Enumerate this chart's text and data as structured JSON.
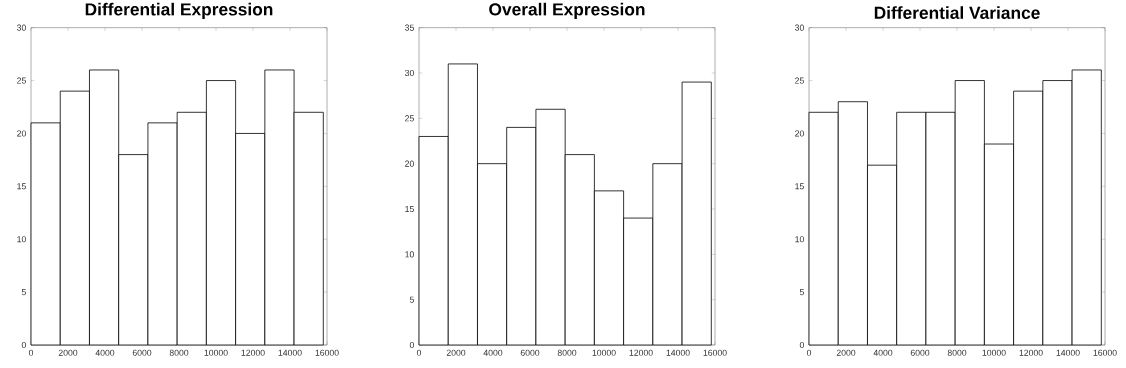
{
  "chart_data": [
    {
      "type": "histogram",
      "title": "Differential Expression",
      "bins": [
        0,
        1580,
        3160,
        4740,
        6320,
        7900,
        9480,
        11060,
        12640,
        14220,
        15800
      ],
      "values": [
        21,
        24,
        26,
        18,
        21,
        22,
        25,
        20,
        26,
        22
      ],
      "color": "#ffffff",
      "xlim": [
        0,
        16000
      ],
      "ylim": [
        0,
        30
      ],
      "xticks": [
        0,
        2000,
        4000,
        6000,
        8000,
        10000,
        12000,
        14000,
        16000
      ],
      "yticks": [
        0,
        5,
        10,
        15,
        20,
        25,
        30
      ]
    },
    {
      "type": "histogram",
      "title": "Overall Expression",
      "bins": [
        0,
        1580,
        3160,
        4740,
        6320,
        7900,
        9480,
        11060,
        12640,
        14220,
        15800
      ],
      "values": [
        23,
        31,
        20,
        24,
        26,
        21,
        17,
        14,
        20,
        29
      ],
      "color": "#ffffff",
      "xlim": [
        0,
        16000
      ],
      "ylim": [
        0,
        35
      ],
      "xticks": [
        0,
        2000,
        4000,
        6000,
        8000,
        10000,
        12000,
        14000,
        16000
      ],
      "yticks": [
        0,
        5,
        10,
        15,
        20,
        25,
        30,
        35
      ]
    },
    {
      "type": "histogram",
      "title": "Differential Variance",
      "bins": [
        0,
        1580,
        3160,
        4740,
        6320,
        7900,
        9480,
        11060,
        12640,
        14220,
        15800
      ],
      "values": [
        22,
        23,
        17,
        22,
        22,
        25,
        19,
        24,
        25,
        26
      ],
      "color": "#ffffff",
      "xlim": [
        0,
        16000
      ],
      "ylim": [
        0,
        30
      ],
      "xticks": [
        0,
        2000,
        4000,
        6000,
        8000,
        10000,
        12000,
        14000,
        16000
      ],
      "yticks": [
        0,
        5,
        10,
        15,
        20,
        25,
        30
      ]
    }
  ]
}
